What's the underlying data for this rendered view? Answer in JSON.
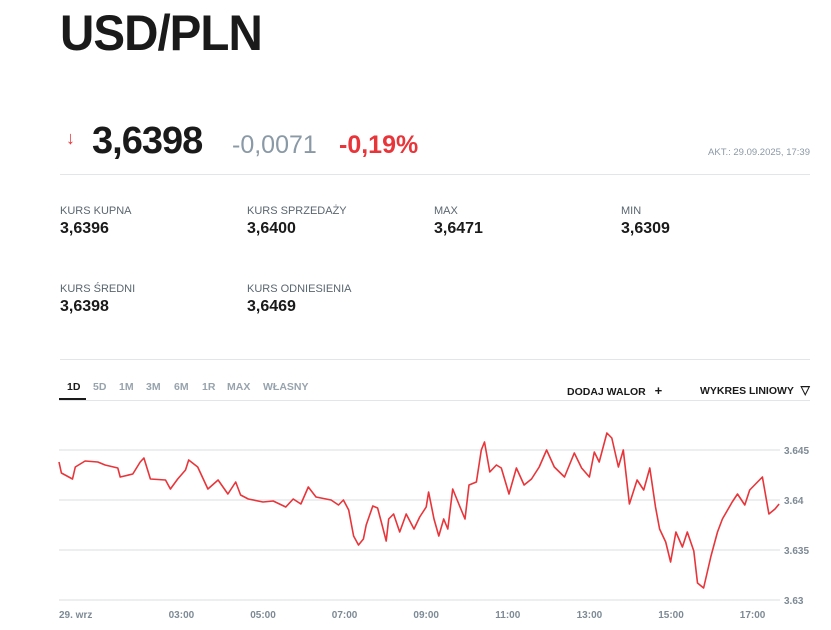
{
  "title": "USD/PLN",
  "quote": {
    "direction_icon": "arrow-down-icon",
    "price": "3,6398",
    "change": "-0,0071",
    "change_pct": "-0,19%",
    "updated": "AKT.: 29.09.2025, 17:39",
    "down_color": "#e8353a"
  },
  "stats": [
    {
      "label": "KURS KUPNA",
      "value": "3,6396"
    },
    {
      "label": "KURS SPRZEDAŻY",
      "value": "3,6400"
    },
    {
      "label": "MAX",
      "value": "3,6471"
    },
    {
      "label": "MIN",
      "value": "3,6309"
    },
    {
      "label": "KURS ŚREDNI",
      "value": "3,6398"
    },
    {
      "label": "KURS ODNIESIENIA",
      "value": "3,6469"
    }
  ],
  "tabs": [
    {
      "label": "1D",
      "active": true
    },
    {
      "label": "5D"
    },
    {
      "label": "1M"
    },
    {
      "label": "3M"
    },
    {
      "label": "6M"
    },
    {
      "label": "1R"
    },
    {
      "label": "MAX"
    },
    {
      "label": "WŁASNY"
    }
  ],
  "actions": {
    "add": "DODAJ WALOR",
    "add_icon": "+",
    "chart_type": "WYKRES LINIOWY",
    "chart_type_icon": "▽"
  },
  "chart_data": {
    "type": "line",
    "line_color": "#e8353a",
    "grid": true,
    "x_ticks": [
      {
        "h": 0,
        "label": "29. wrz"
      },
      {
        "h": 3,
        "label": "03:00"
      },
      {
        "h": 5,
        "label": "05:00"
      },
      {
        "h": 7,
        "label": "07:00"
      },
      {
        "h": 9,
        "label": "09:00"
      },
      {
        "h": 11,
        "label": "11:00"
      },
      {
        "h": 13,
        "label": "13:00"
      },
      {
        "h": 15,
        "label": "15:00"
      },
      {
        "h": 17,
        "label": "17:00"
      }
    ],
    "y_ticks": [
      3.63,
      3.635,
      3.64,
      3.645
    ],
    "ylim": [
      3.63,
      3.6475
    ],
    "xlim_hours": [
      0,
      17.7
    ],
    "points": [
      [
        0,
        3.6438
      ],
      [
        0.06,
        3.6427
      ],
      [
        0.33,
        3.6421
      ],
      [
        0.4,
        3.6433
      ],
      [
        0.64,
        3.6439
      ],
      [
        0.95,
        3.6438
      ],
      [
        1.13,
        3.6435
      ],
      [
        1.44,
        3.6432
      ],
      [
        1.5,
        3.6423
      ],
      [
        1.81,
        3.6426
      ],
      [
        1.99,
        3.6438
      ],
      [
        2.08,
        3.6442
      ],
      [
        2.24,
        3.6421
      ],
      [
        2.61,
        3.642
      ],
      [
        2.73,
        3.6411
      ],
      [
        2.91,
        3.6421
      ],
      [
        3.1,
        3.643
      ],
      [
        3.18,
        3.644
      ],
      [
        3.4,
        3.6433
      ],
      [
        3.65,
        3.6411
      ],
      [
        3.9,
        3.642
      ],
      [
        4.14,
        3.6406
      ],
      [
        4.33,
        3.6418
      ],
      [
        4.45,
        3.6405
      ],
      [
        4.64,
        3.6401
      ],
      [
        5.0,
        3.6398
      ],
      [
        5.25,
        3.6399
      ],
      [
        5.56,
        3.6393
      ],
      [
        5.74,
        3.6401
      ],
      [
        5.93,
        3.6396
      ],
      [
        6.11,
        3.6413
      ],
      [
        6.3,
        3.6403
      ],
      [
        6.67,
        3.64
      ],
      [
        6.85,
        3.6395
      ],
      [
        6.97,
        3.64
      ],
      [
        7.1,
        3.639
      ],
      [
        7.22,
        3.6364
      ],
      [
        7.34,
        3.6355
      ],
      [
        7.46,
        3.6361
      ],
      [
        7.53,
        3.6375
      ],
      [
        7.69,
        3.6394
      ],
      [
        7.81,
        3.6392
      ],
      [
        7.9,
        3.6378
      ],
      [
        8.02,
        3.6359
      ],
      [
        8.08,
        3.6381
      ],
      [
        8.2,
        3.6386
      ],
      [
        8.35,
        3.6368
      ],
      [
        8.51,
        3.6386
      ],
      [
        8.7,
        3.6371
      ],
      [
        8.84,
        3.6383
      ],
      [
        9.0,
        3.6393
      ],
      [
        9.06,
        3.6408
      ],
      [
        9.19,
        3.6381
      ],
      [
        9.31,
        3.6364
      ],
      [
        9.43,
        3.6381
      ],
      [
        9.53,
        3.6371
      ],
      [
        9.65,
        3.6411
      ],
      [
        9.8,
        3.6396
      ],
      [
        9.95,
        3.6381
      ],
      [
        10.05,
        3.6415
      ],
      [
        10.23,
        3.6418
      ],
      [
        10.35,
        3.645
      ],
      [
        10.43,
        3.6458
      ],
      [
        10.56,
        3.6428
      ],
      [
        10.72,
        3.6435
      ],
      [
        10.84,
        3.6432
      ],
      [
        11.03,
        3.6406
      ],
      [
        11.21,
        3.6432
      ],
      [
        11.4,
        3.6415
      ],
      [
        11.58,
        3.6421
      ],
      [
        11.77,
        3.6433
      ],
      [
        11.95,
        3.645
      ],
      [
        12.14,
        3.6433
      ],
      [
        12.39,
        3.6423
      ],
      [
        12.63,
        3.6447
      ],
      [
        12.81,
        3.6432
      ],
      [
        13.0,
        3.6423
      ],
      [
        13.12,
        3.6448
      ],
      [
        13.24,
        3.6438
      ],
      [
        13.43,
        3.6467
      ],
      [
        13.55,
        3.6462
      ],
      [
        13.71,
        3.6433
      ],
      [
        13.83,
        3.645
      ],
      [
        13.98,
        3.6396
      ],
      [
        14.17,
        3.642
      ],
      [
        14.33,
        3.641
      ],
      [
        14.48,
        3.6432
      ],
      [
        14.62,
        3.6393
      ],
      [
        14.72,
        3.6371
      ],
      [
        14.87,
        3.6358
      ],
      [
        14.99,
        3.6338
      ],
      [
        15.12,
        3.6368
      ],
      [
        15.28,
        3.6353
      ],
      [
        15.4,
        3.6368
      ],
      [
        15.56,
        3.6349
      ],
      [
        15.65,
        3.6317
      ],
      [
        15.8,
        3.6312
      ],
      [
        15.98,
        3.6344
      ],
      [
        16.14,
        3.6368
      ],
      [
        16.26,
        3.6381
      ],
      [
        16.5,
        3.6398
      ],
      [
        16.63,
        3.6406
      ],
      [
        16.81,
        3.6395
      ],
      [
        16.93,
        3.641
      ],
      [
        17.12,
        3.6418
      ],
      [
        17.24,
        3.6423
      ],
      [
        17.4,
        3.6386
      ],
      [
        17.55,
        3.6391
      ],
      [
        17.65,
        3.6396
      ]
    ]
  }
}
